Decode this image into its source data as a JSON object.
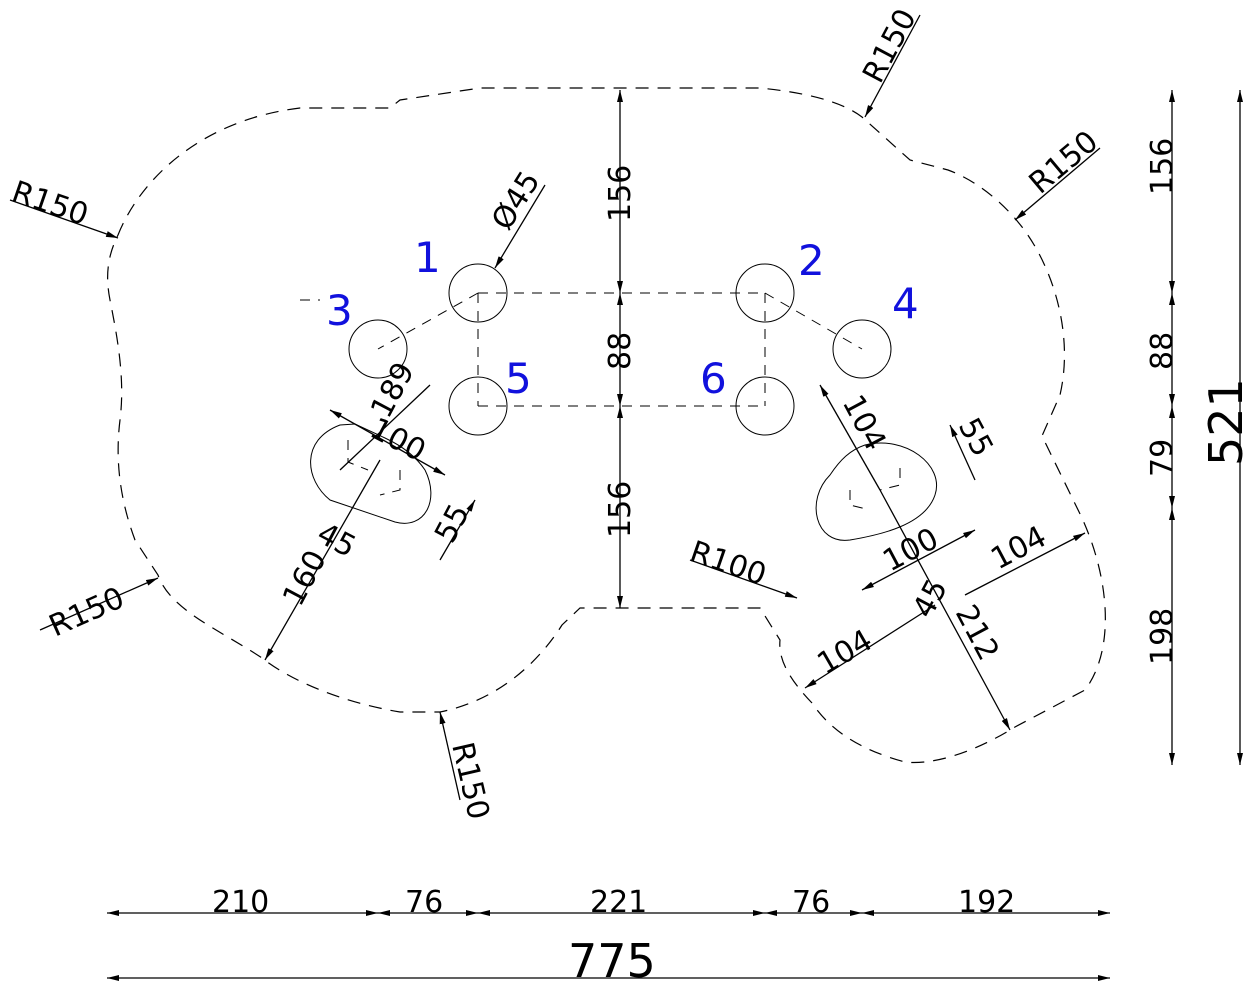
{
  "drawing": {
    "hole_labels": [
      "1",
      "2",
      "3",
      "4",
      "5",
      "6"
    ],
    "hole_diameter": "Ø45",
    "radius_labels": {
      "r150": "R150",
      "r100": "R100"
    },
    "vertical_dims_center": [
      "156",
      "88",
      "156"
    ],
    "vertical_dims_right": [
      "156",
      "88",
      "79",
      "198"
    ],
    "overall_height": "521",
    "bottom_dims": [
      "210",
      "76",
      "221",
      "76",
      "192"
    ],
    "overall_width": "775",
    "left_slot_dims": {
      "d189": "189",
      "d100": "100",
      "d45": "45",
      "d160": "160",
      "d55": "55"
    },
    "right_slot_dims": {
      "d104a": "104",
      "d55": "55",
      "d100": "100",
      "d104b": "104",
      "d45": "45",
      "d212": "212",
      "d104c": "104"
    }
  }
}
